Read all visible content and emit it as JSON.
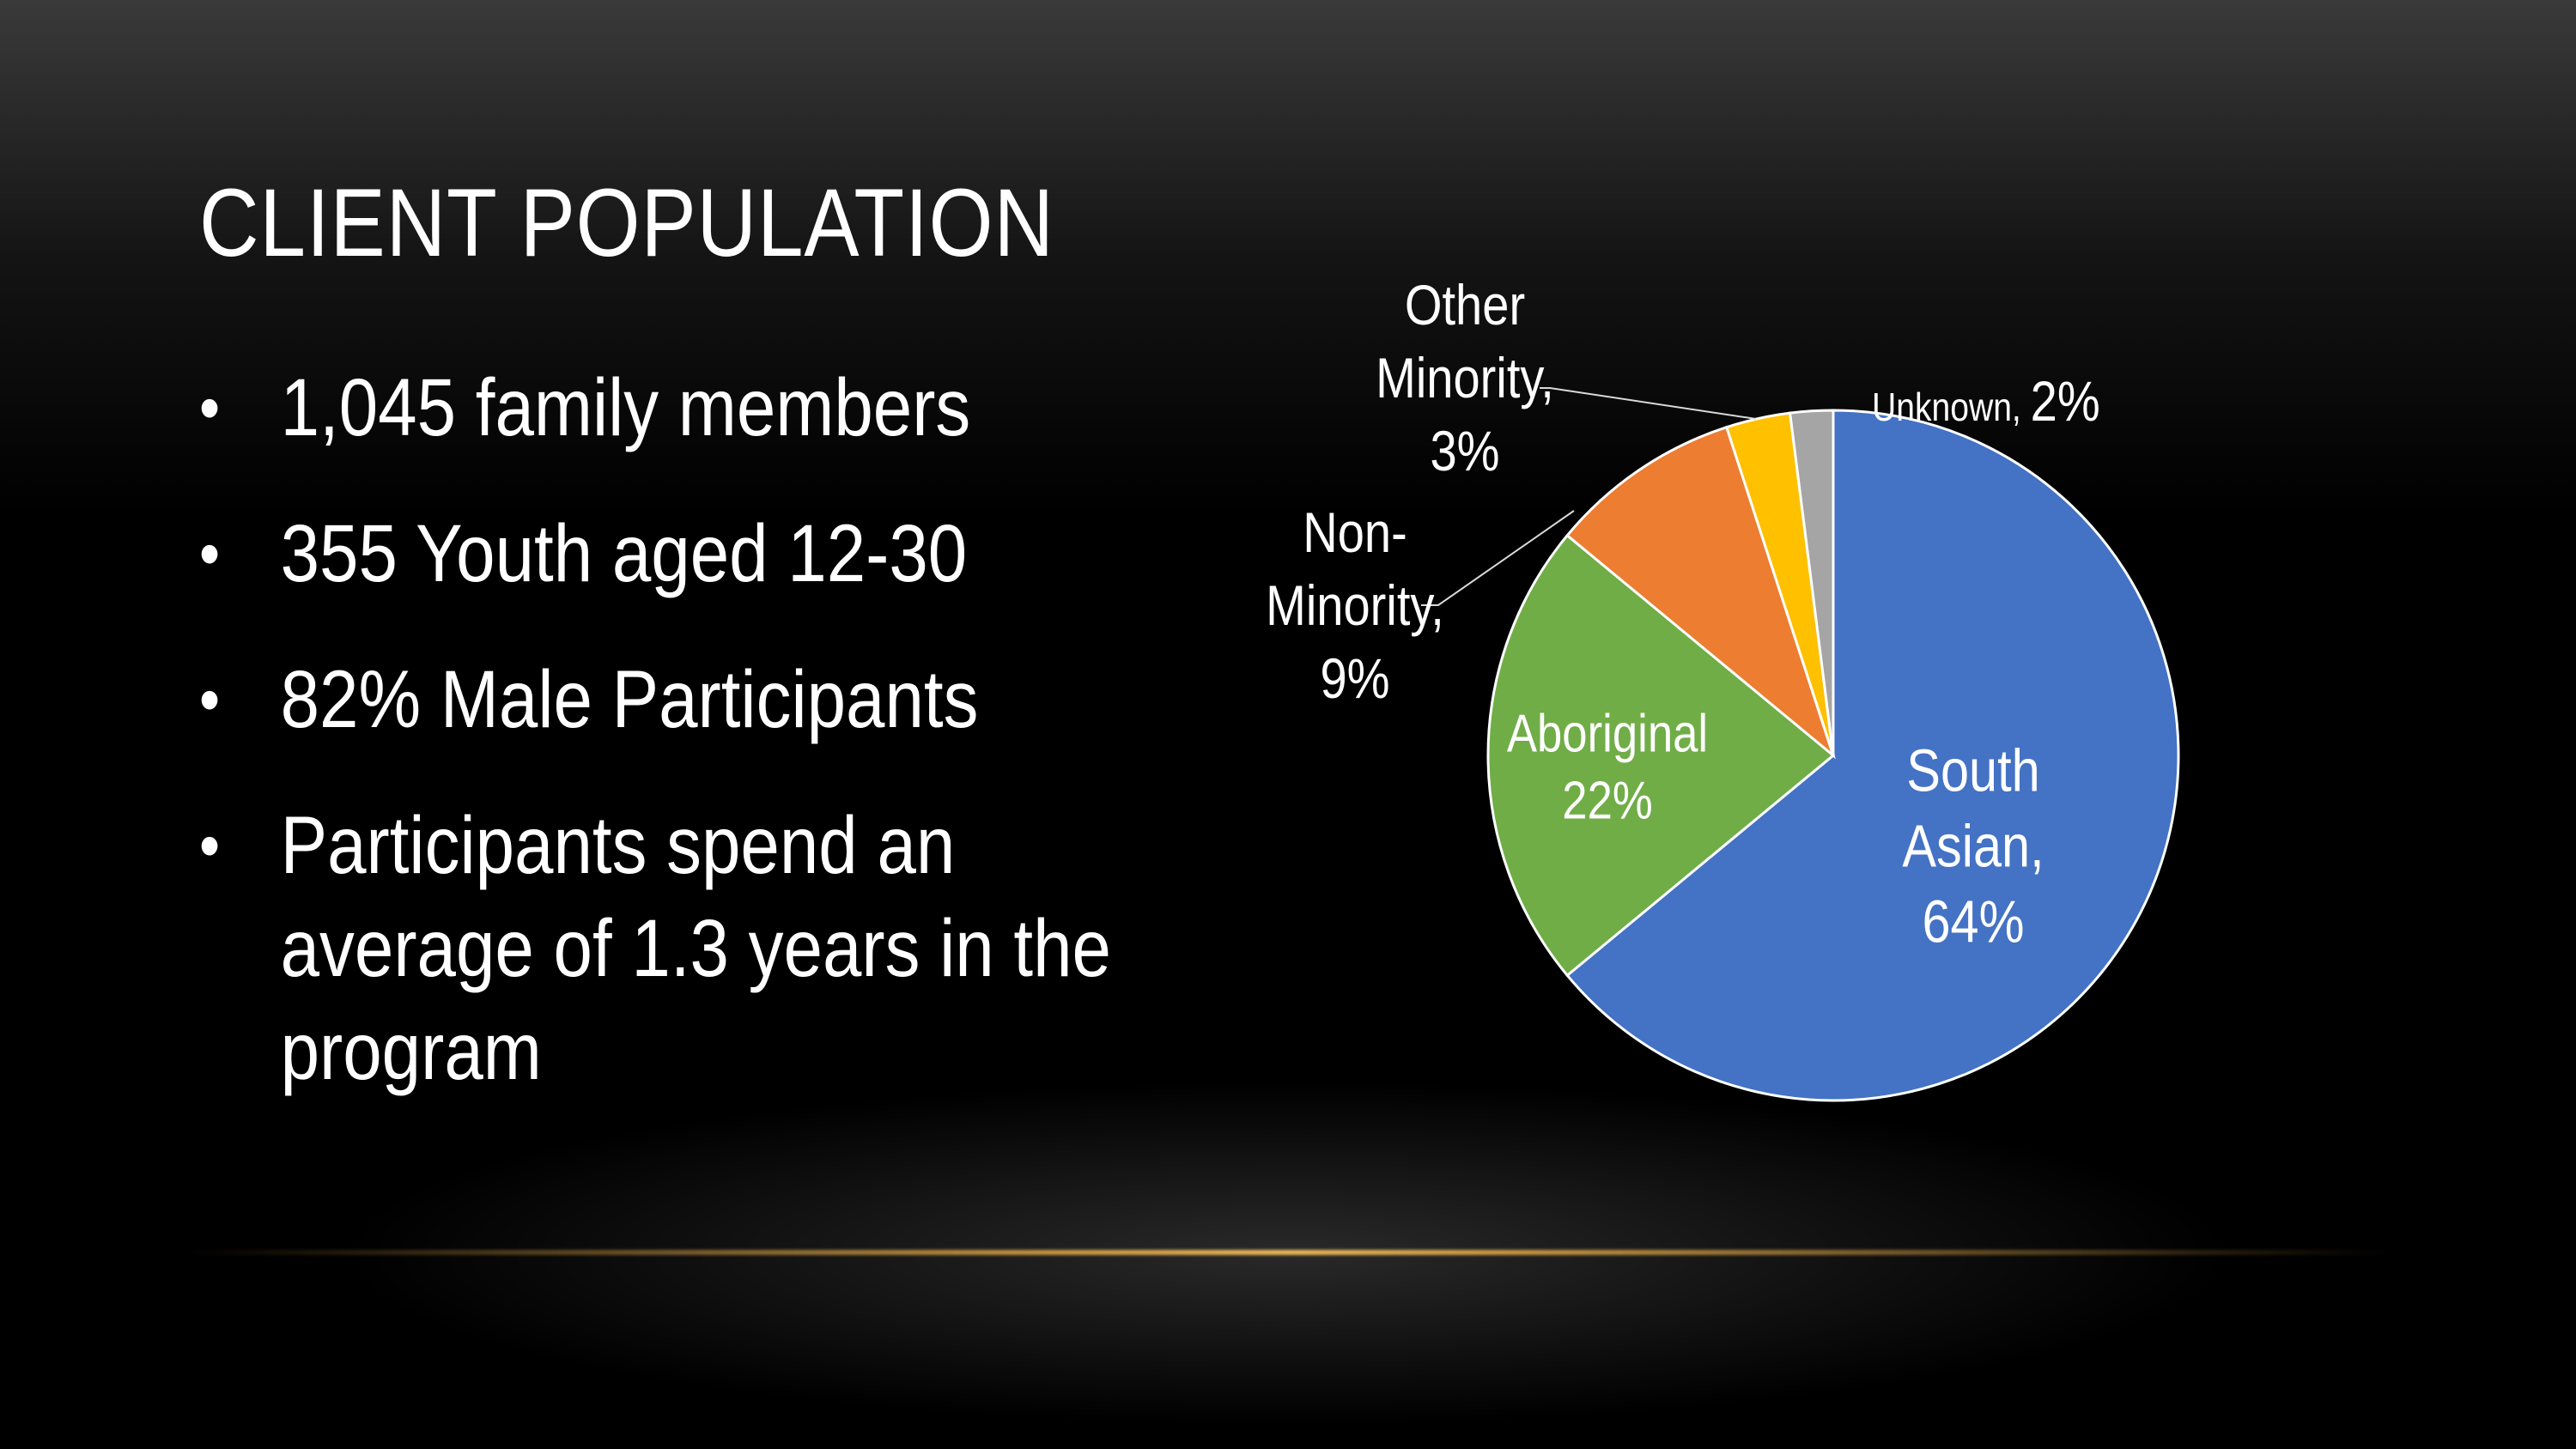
{
  "slide": {
    "title": "CLIENT POPULATION",
    "bullets": [
      {
        "lines": [
          "1,045 family members"
        ]
      },
      {
        "lines": [
          "355 Youth aged 12-30"
        ]
      },
      {
        "lines": [
          "82% Male Participants"
        ]
      },
      {
        "lines": [
          "Participants spend an",
          "average of 1.3 years in the",
          "program"
        ]
      }
    ]
  },
  "colors": {
    "accent_line": "#E0A84A",
    "south_asian": "#4472C4",
    "aboriginal": "#70AD47",
    "non_minority": "#ED7D31",
    "other_minority": "#FFC000",
    "unknown": "#A5A5A5"
  },
  "chart_data": {
    "type": "pie",
    "slices": [
      {
        "name": "South Asian",
        "value": 64,
        "color": "#4472C4",
        "label_lines": [
          "South",
          "Asian,",
          "64%"
        ]
      },
      {
        "name": "Aboriginal",
        "value": 22,
        "color": "#70AD47",
        "label_lines": [
          "Aboriginal",
          "22%"
        ]
      },
      {
        "name": "Non-Minority",
        "value": 9,
        "color": "#ED7D31",
        "label_lines": [
          "Non-",
          "Minority,",
          "9%"
        ]
      },
      {
        "name": "Other Minority",
        "value": 3,
        "color": "#FFC000",
        "label_lines": [
          "Other",
          "Minority,",
          "3%"
        ]
      },
      {
        "name": "Unknown",
        "value": 2,
        "color": "#A5A5A5",
        "label_lines": [
          "Unknown, 2%"
        ]
      }
    ],
    "start": "12 o'clock",
    "direction": "clockwise",
    "legend": "none"
  }
}
